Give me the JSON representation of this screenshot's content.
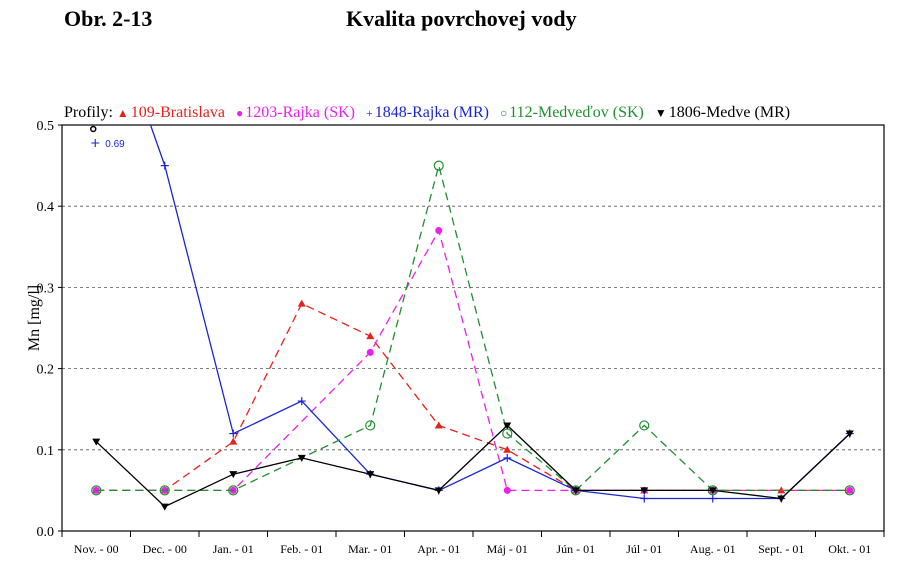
{
  "header": {
    "figure_number": "Obr. 2-13",
    "title": "Kvalita povrchovej vody"
  },
  "chart_data": {
    "type": "line",
    "legend_prefix": "Profily:",
    "xlabel": "",
    "ylabel": "Mn [mg/l]",
    "ylim": [
      0,
      0.5
    ],
    "y_ticks": [
      "0.0",
      "0.1",
      "0.2",
      "0.3",
      "0.4",
      "0.5"
    ],
    "grid": "horizontal dashed",
    "legend_position": "top",
    "categories": [
      "Nov. - 00",
      "Dec. - 00",
      "Jan. - 01",
      "Feb. - 01",
      "Mar. - 01",
      "Apr. - 01",
      "Máj - 01",
      "Jún - 01",
      "Júl - 01",
      "Aug. - 01",
      "Sept. - 01",
      "Okt. - 01"
    ],
    "series": [
      {
        "name": "109-Bratislava",
        "color": "#e8201a",
        "marker": "triangle-up",
        "dash": "dashed",
        "values": [
          0.05,
          0.05,
          0.11,
          0.28,
          0.24,
          0.13,
          0.1,
          0.05,
          0.05,
          0.05,
          0.05,
          0.05
        ]
      },
      {
        "name": "1203-Rajka (SK)",
        "color": "#ee1fee",
        "marker": "dot",
        "dash": "dashed",
        "values": [
          0.05,
          0.05,
          0.05,
          null,
          0.22,
          0.37,
          0.05,
          0.05,
          0.05,
          0.05,
          null,
          0.05
        ]
      },
      {
        "name": "1848-Rajka (MR)",
        "color": "#1a26d6",
        "marker": "plus",
        "dash": "solid",
        "values": [
          0.69,
          0.45,
          0.12,
          0.16,
          0.07,
          0.05,
          0.09,
          0.05,
          0.04,
          0.04,
          0.04,
          0.12
        ]
      },
      {
        "name": "112-Medveďov (SK)",
        "color": "#1f8f2f",
        "marker": "circle-open",
        "dash": "dashed",
        "values": [
          0.05,
          0.05,
          0.05,
          null,
          0.13,
          0.45,
          0.12,
          0.05,
          0.13,
          0.05,
          null,
          0.05
        ]
      },
      {
        "name": "1806-Medve (MR)",
        "color": "#000000",
        "marker": "triangle-down",
        "dash": "solid",
        "values": [
          0.11,
          0.03,
          0.07,
          0.09,
          0.07,
          0.05,
          0.13,
          0.05,
          0.05,
          0.05,
          0.04,
          0.12
        ]
      }
    ],
    "annotations": [
      {
        "text": "0.69",
        "series": "1848-Rajka (MR)",
        "category": "Nov. - 00"
      }
    ]
  }
}
